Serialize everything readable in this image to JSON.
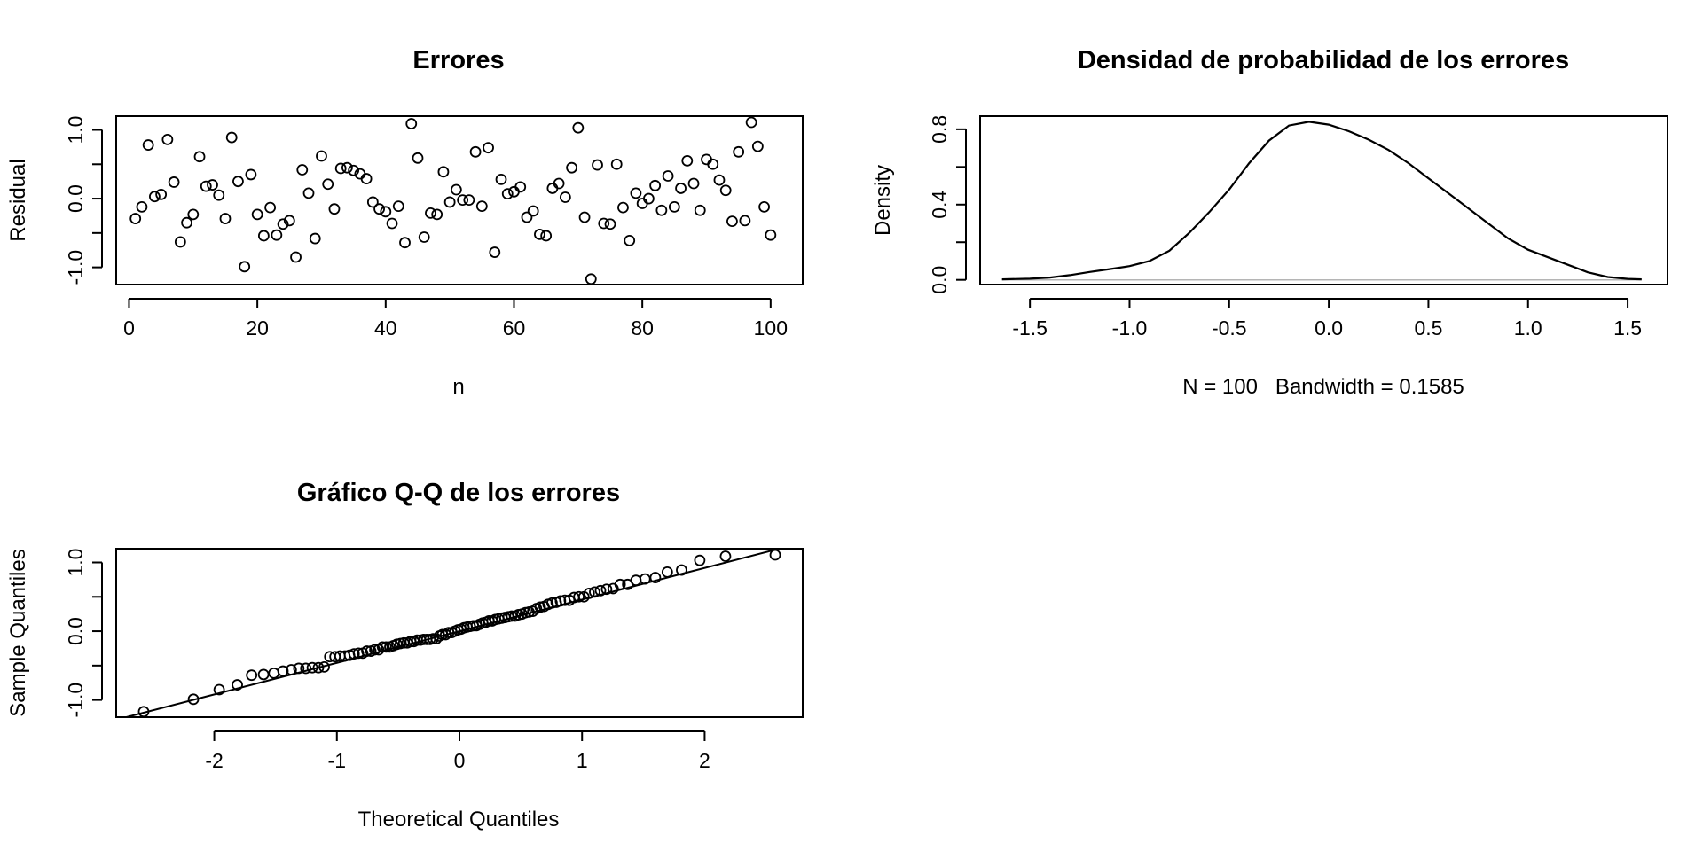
{
  "chart_data": [
    {
      "type": "scatter",
      "title": "Errores",
      "xlabel": "n",
      "ylabel": "Residual",
      "xlim": [
        -2,
        105
      ],
      "ylim": [
        -1.25,
        1.2
      ],
      "xticks": [
        0,
        20,
        40,
        60,
        80,
        100
      ],
      "yticks": [
        -1.0,
        -0.5,
        0.0,
        0.5,
        1.0
      ],
      "ytick_labels": [
        "-1.0",
        "",
        "0.0",
        "",
        "1.0"
      ],
      "grid": false,
      "x": [
        1,
        2,
        3,
        4,
        5,
        6,
        7,
        8,
        9,
        10,
        11,
        12,
        13,
        14,
        15,
        16,
        17,
        18,
        19,
        20,
        21,
        22,
        23,
        24,
        25,
        26,
        27,
        28,
        29,
        30,
        31,
        32,
        33,
        34,
        35,
        36,
        37,
        38,
        39,
        40,
        41,
        42,
        43,
        44,
        45,
        46,
        47,
        48,
        49,
        50,
        51,
        52,
        53,
        54,
        55,
        56,
        57,
        58,
        59,
        60,
        61,
        62,
        63,
        64,
        65,
        66,
        67,
        68,
        69,
        70,
        71,
        72,
        73,
        74,
        75,
        76,
        77,
        78,
        79,
        80,
        81,
        82,
        83,
        84,
        85,
        86,
        87,
        88,
        89,
        90,
        91,
        92,
        93,
        94,
        95,
        96,
        97,
        98,
        99,
        100
      ],
      "y": [
        -0.29,
        -0.12,
        0.78,
        0.03,
        0.06,
        0.86,
        0.24,
        -0.63,
        -0.35,
        -0.23,
        0.61,
        0.18,
        0.2,
        0.05,
        -0.29,
        0.89,
        0.25,
        -0.99,
        0.35,
        -0.23,
        -0.54,
        -0.13,
        -0.53,
        -0.37,
        -0.32,
        -0.85,
        0.42,
        0.08,
        -0.58,
        0.62,
        0.21,
        -0.15,
        0.44,
        0.45,
        0.41,
        0.36,
        0.29,
        -0.05,
        -0.15,
        -0.19,
        -0.36,
        -0.11,
        -0.64,
        1.09,
        0.59,
        -0.56,
        -0.21,
        -0.23,
        0.39,
        -0.05,
        0.13,
        -0.02,
        -0.02,
        0.68,
        -0.11,
        0.74,
        -0.78,
        0.28,
        0.07,
        0.1,
        0.17,
        -0.27,
        -0.18,
        -0.52,
        -0.54,
        0.15,
        0.22,
        0.02,
        0.45,
        1.03,
        -0.27,
        -1.17,
        0.49,
        -0.36,
        -0.37,
        0.5,
        -0.13,
        -0.61,
        0.08,
        -0.07,
        0.0,
        0.19,
        -0.17,
        0.33,
        -0.12,
        0.15,
        0.55,
        0.22,
        -0.17,
        0.57,
        0.5,
        0.27,
        0.12,
        -0.33,
        0.68,
        -0.32,
        1.11,
        0.76,
        -0.12,
        -0.53
      ]
    },
    {
      "type": "line",
      "title": "Densidad de probabilidad de los errores",
      "xlabel": "N = 100   Bandwidth = 0.1585",
      "ylabel": "Density",
      "xlim": [
        -1.75,
        1.7
      ],
      "ylim": [
        -0.025,
        0.87
      ],
      "xticks": [
        -1.5,
        -1.0,
        -0.5,
        0.0,
        0.5,
        1.0,
        1.5
      ],
      "xtick_labels": [
        "-1.5",
        "-1.0",
        "-0.5",
        "0.0",
        "0.5",
        "1.0",
        "1.5"
      ],
      "yticks": [
        0.0,
        0.2,
        0.4,
        0.6,
        0.8
      ],
      "ytick_labels": [
        "0.0",
        "",
        "0.4",
        "",
        "0.8"
      ],
      "grid": false,
      "zero_line": true,
      "x": [
        -1.64,
        -1.5,
        -1.4,
        -1.3,
        -1.2,
        -1.1,
        -1.0,
        -0.9,
        -0.8,
        -0.7,
        -0.6,
        -0.5,
        -0.4,
        -0.3,
        -0.2,
        -0.1,
        0.0,
        0.1,
        0.2,
        0.3,
        0.4,
        0.5,
        0.6,
        0.7,
        0.8,
        0.9,
        1.0,
        1.1,
        1.2,
        1.3,
        1.4,
        1.5,
        1.57
      ],
      "y": [
        0.003,
        0.006,
        0.012,
        0.025,
        0.042,
        0.057,
        0.073,
        0.1,
        0.155,
        0.25,
        0.36,
        0.48,
        0.62,
        0.74,
        0.82,
        0.84,
        0.825,
        0.79,
        0.745,
        0.69,
        0.62,
        0.54,
        0.46,
        0.38,
        0.3,
        0.22,
        0.16,
        0.12,
        0.08,
        0.04,
        0.015,
        0.005,
        0.003
      ]
    },
    {
      "type": "scatter",
      "title": "Gráfico Q-Q de los errores",
      "xlabel": "Theoretical Quantiles",
      "ylabel": "Sample Quantiles",
      "xlim": [
        -2.8,
        2.8
      ],
      "ylim": [
        -1.25,
        1.2
      ],
      "xticks": [
        -2,
        -1,
        0,
        1,
        2
      ],
      "xtick_labels": [
        "-2",
        "-1",
        "0",
        "1",
        "2"
      ],
      "yticks": [
        -1.0,
        -0.5,
        0.0,
        0.5,
        1.0
      ],
      "ytick_labels": [
        "-1.0",
        "",
        "0.0",
        "",
        "1.0"
      ],
      "grid": false,
      "reference_line": {
        "slope": 0.46,
        "intercept": 0.0
      },
      "sample_quantiles_sorted": true,
      "n": 100
    }
  ]
}
